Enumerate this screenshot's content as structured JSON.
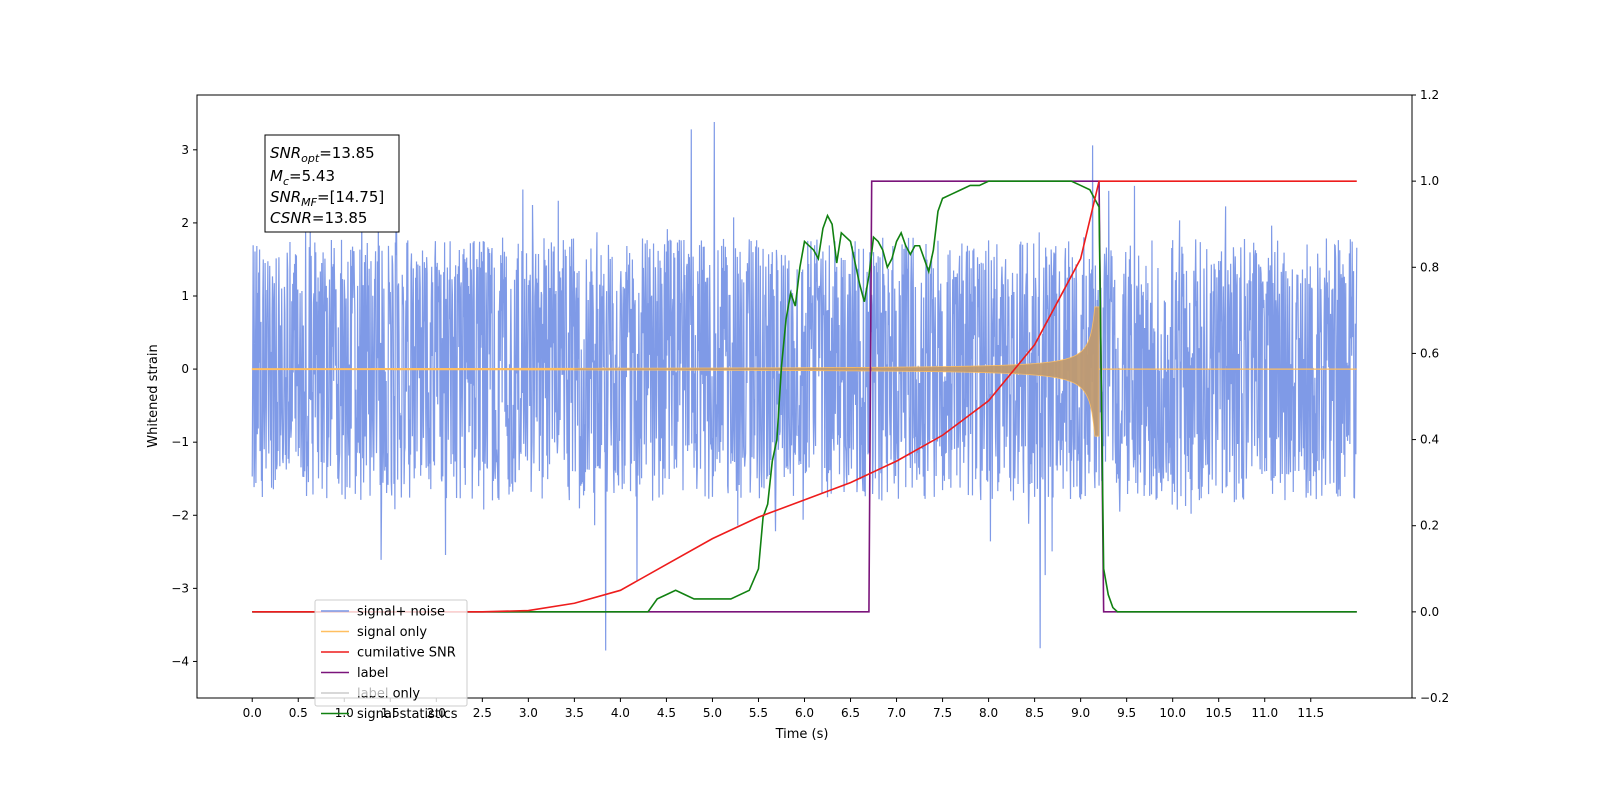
{
  "chart_data": {
    "type": "line",
    "title": "",
    "xlabel": "Time (s)",
    "ylabel": "Whitened strain",
    "ylabel_right": "",
    "xlim": [
      -0.6,
      12.6
    ],
    "ylim_left": [
      -4.5,
      3.75
    ],
    "ylim_right": [
      -0.2,
      1.2
    ],
    "grid": false,
    "x_ticks": [
      "0.0",
      "0.5",
      "1.0",
      "1.5",
      "2.0",
      "2.5",
      "3.0",
      "3.5",
      "4.0",
      "4.5",
      "5.0",
      "5.5",
      "6.0",
      "6.5",
      "7.0",
      "7.5",
      "8.0",
      "8.5",
      "9.0",
      "9.5",
      "10.0",
      "10.5",
      "11.0",
      "11.5"
    ],
    "y_ticks_left": [
      "−4",
      "−3",
      "−2",
      "−1",
      "0",
      "1",
      "2",
      "3"
    ],
    "y_ticks_right": [
      "−0.2",
      "0.0",
      "0.2",
      "0.4",
      "0.6",
      "0.8",
      "1.0",
      "1.2"
    ],
    "annotation": {
      "snr_opt_label": "SNR",
      "snr_opt_sub": "opt",
      "snr_opt_value": "=13.85",
      "mc_label": "M",
      "mc_sub": "c",
      "mc_value": "=5.43",
      "snr_mf_label": "SNR",
      "snr_mf_sub": "MF",
      "snr_mf_value": "=[14.75]",
      "csnr_label": "CSNR",
      "csnr_value": "=13.85"
    },
    "legend_position": "lower-left",
    "series": [
      {
        "name": "signal+ noise",
        "axis": "left",
        "color": "#7895e6",
        "description_range": [
          0.0,
          12.0
        ],
        "amplitude_typical": 1.5,
        "peaks": [
          [
            3.84,
            -3.85
          ],
          [
            5.02,
            3.38
          ],
          [
            8.56,
            -3.82
          ],
          [
            4.77,
            3.28
          ],
          [
            9.13,
            3.06
          ]
        ]
      },
      {
        "name": "signal only",
        "axis": "left",
        "color": "#ffbf60",
        "range": [
          0.0,
          9.2
        ],
        "peak_amplitude": 0.85
      },
      {
        "name": "cumilative SNR",
        "axis": "right",
        "color": "#ee1c1c",
        "x": [
          0.0,
          2.5,
          3.0,
          3.5,
          4.0,
          4.5,
          5.0,
          5.5,
          6.0,
          6.5,
          7.0,
          7.5,
          8.0,
          8.5,
          9.0,
          9.2,
          12.0
        ],
        "y": [
          0.0,
          0.0,
          0.003,
          0.02,
          0.05,
          0.11,
          0.17,
          0.22,
          0.26,
          0.3,
          0.35,
          0.41,
          0.49,
          0.62,
          0.82,
          1.0,
          1.0
        ]
      },
      {
        "name": "label",
        "axis": "right",
        "color": "#7b147b",
        "x": [
          0.0,
          6.7,
          6.73,
          9.2,
          9.25,
          12.0
        ],
        "y": [
          0.0,
          0.0,
          1.0,
          1.0,
          0.0,
          0.0
        ]
      },
      {
        "name": "label only",
        "axis": "right",
        "color": "#cccccc",
        "hidden": true
      },
      {
        "name": "signal statistics",
        "axis": "right",
        "color": "#118111",
        "x": [
          0.0,
          4.3,
          4.4,
          4.5,
          4.6,
          4.7,
          4.8,
          4.9,
          5.0,
          5.2,
          5.4,
          5.5,
          5.55,
          5.6,
          5.65,
          5.7,
          5.75,
          5.8,
          5.85,
          5.9,
          5.95,
          6.0,
          6.1,
          6.15,
          6.2,
          6.25,
          6.3,
          6.35,
          6.4,
          6.5,
          6.55,
          6.6,
          6.65,
          6.7,
          6.75,
          6.8,
          6.85,
          6.9,
          6.95,
          7.0,
          7.05,
          7.1,
          7.15,
          7.2,
          7.25,
          7.3,
          7.35,
          7.4,
          7.45,
          7.5,
          7.6,
          7.7,
          7.8,
          7.9,
          8.0,
          8.1,
          8.2,
          8.3,
          8.5,
          8.7,
          8.9,
          9.0,
          9.1,
          9.15,
          9.2,
          9.25,
          9.3,
          9.35,
          9.4,
          9.5,
          12.0
        ],
        "y": [
          0.0,
          0.0,
          0.03,
          0.04,
          0.05,
          0.04,
          0.03,
          0.03,
          0.03,
          0.03,
          0.05,
          0.1,
          0.22,
          0.25,
          0.35,
          0.4,
          0.57,
          0.68,
          0.74,
          0.71,
          0.8,
          0.86,
          0.84,
          0.82,
          0.89,
          0.92,
          0.9,
          0.81,
          0.88,
          0.86,
          0.81,
          0.76,
          0.72,
          0.78,
          0.87,
          0.86,
          0.84,
          0.8,
          0.82,
          0.86,
          0.88,
          0.85,
          0.83,
          0.85,
          0.85,
          0.82,
          0.79,
          0.84,
          0.93,
          0.96,
          0.97,
          0.98,
          0.99,
          0.99,
          1.0,
          1.0,
          1.0,
          1.0,
          1.0,
          1.0,
          1.0,
          0.99,
          0.98,
          0.96,
          0.94,
          0.1,
          0.04,
          0.01,
          0.0,
          0.0,
          0.0
        ]
      }
    ]
  }
}
